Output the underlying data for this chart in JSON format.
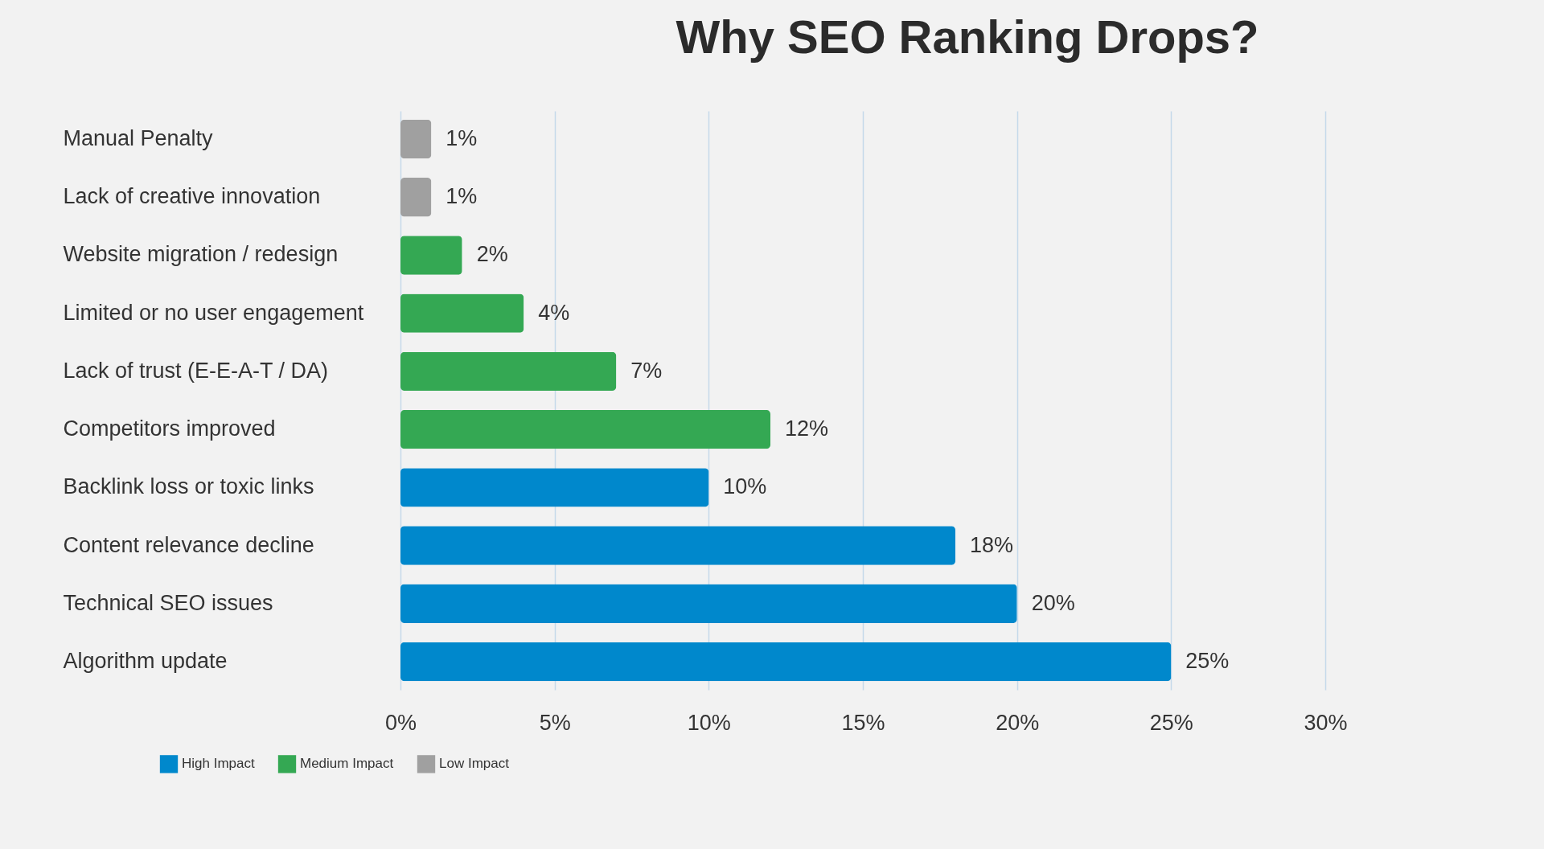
{
  "chart_data": {
    "type": "bar",
    "title": "Why SEO Ranking Drops?",
    "orientation": "horizontal",
    "categories": [
      "Manual Penalty",
      "Lack of creative innovation",
      "Website migration / redesign",
      "Limited or no user engagement",
      "Lack of trust (E-E-A-T / DA)",
      "Competitors improved",
      "Backlink loss or toxic links",
      "Content relevance decline",
      "Technical SEO issues",
      "Algorithm update"
    ],
    "series": [
      {
        "name": "High Impact",
        "color": "#0088cc",
        "values": [
          null,
          null,
          null,
          null,
          null,
          null,
          10,
          18,
          20,
          25
        ],
        "value_labels": [
          null,
          null,
          null,
          null,
          null,
          null,
          "10%",
          "18%",
          "20%",
          "25%"
        ]
      },
      {
        "name": "Medium Impact",
        "color": "#34a853",
        "values": [
          null,
          null,
          2,
          4,
          7,
          12,
          null,
          null,
          null,
          null
        ],
        "value_labels": [
          null,
          null,
          "2%",
          "4%",
          "7%",
          "12%",
          null,
          null,
          null,
          null
        ]
      },
      {
        "name": "Low Impact",
        "color": "#a0a0a0",
        "values": [
          1,
          1,
          null,
          null,
          null,
          null,
          null,
          null,
          null,
          null
        ],
        "value_labels": [
          "1%",
          "1%",
          null,
          null,
          null,
          null,
          null,
          null,
          null,
          null
        ]
      }
    ],
    "xlim": [
      0,
      30
    ],
    "xticks": [
      {
        "value": 0,
        "label": "0%"
      },
      {
        "value": 5,
        "label": "5%"
      },
      {
        "value": 10,
        "label": "10%"
      },
      {
        "value": 15,
        "label": "15%"
      },
      {
        "value": 20,
        "label": "20%"
      },
      {
        "value": 25,
        "label": "25%"
      },
      {
        "value": 30,
        "label": "30%"
      }
    ],
    "grid": "x",
    "legend": "bottom left"
  }
}
